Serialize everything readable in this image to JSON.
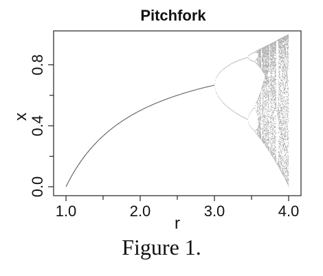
{
  "caption": "Figure 1.",
  "chart_data": {
    "type": "scatter",
    "title": "Pitchfork",
    "xlabel": "r",
    "ylabel": "x",
    "xlim": [
      1.0,
      4.0
    ],
    "ylim": [
      0.0,
      1.0
    ],
    "xticks": [
      1.0,
      2.0,
      3.0,
      4.0
    ],
    "xtick_labels": [
      "1.0",
      "2.0",
      "3.0",
      "4.0"
    ],
    "yticks": [
      0.0,
      0.4,
      0.8
    ],
    "ytick_labels": [
      "0.0",
      "0.4",
      "0.8"
    ],
    "grid": false,
    "legend": "none",
    "mark_color": "#555555",
    "series": [
      {
        "points": [
          [
            1.0,
            0.0
          ],
          [
            1.25,
            0.2
          ],
          [
            1.5,
            0.333
          ],
          [
            1.75,
            0.429
          ],
          [
            2.0,
            0.5
          ],
          [
            2.25,
            0.556
          ],
          [
            2.5,
            0.6
          ],
          [
            2.75,
            0.636
          ],
          [
            3.0,
            0.667
          ],
          [
            3.2,
            0.513
          ],
          [
            3.2,
            0.799
          ],
          [
            3.45,
            0.43
          ],
          [
            3.45,
            0.85
          ],
          [
            3.5,
            0.383
          ],
          [
            3.5,
            0.827
          ],
          [
            3.5,
            0.501
          ],
          [
            3.5,
            0.875
          ],
          [
            3.83,
            0.156
          ],
          [
            3.83,
            0.505
          ],
          [
            3.83,
            0.957
          ],
          [
            4.0,
            0.0
          ],
          [
            4.0,
            1.0
          ]
        ]
      }
    ]
  }
}
